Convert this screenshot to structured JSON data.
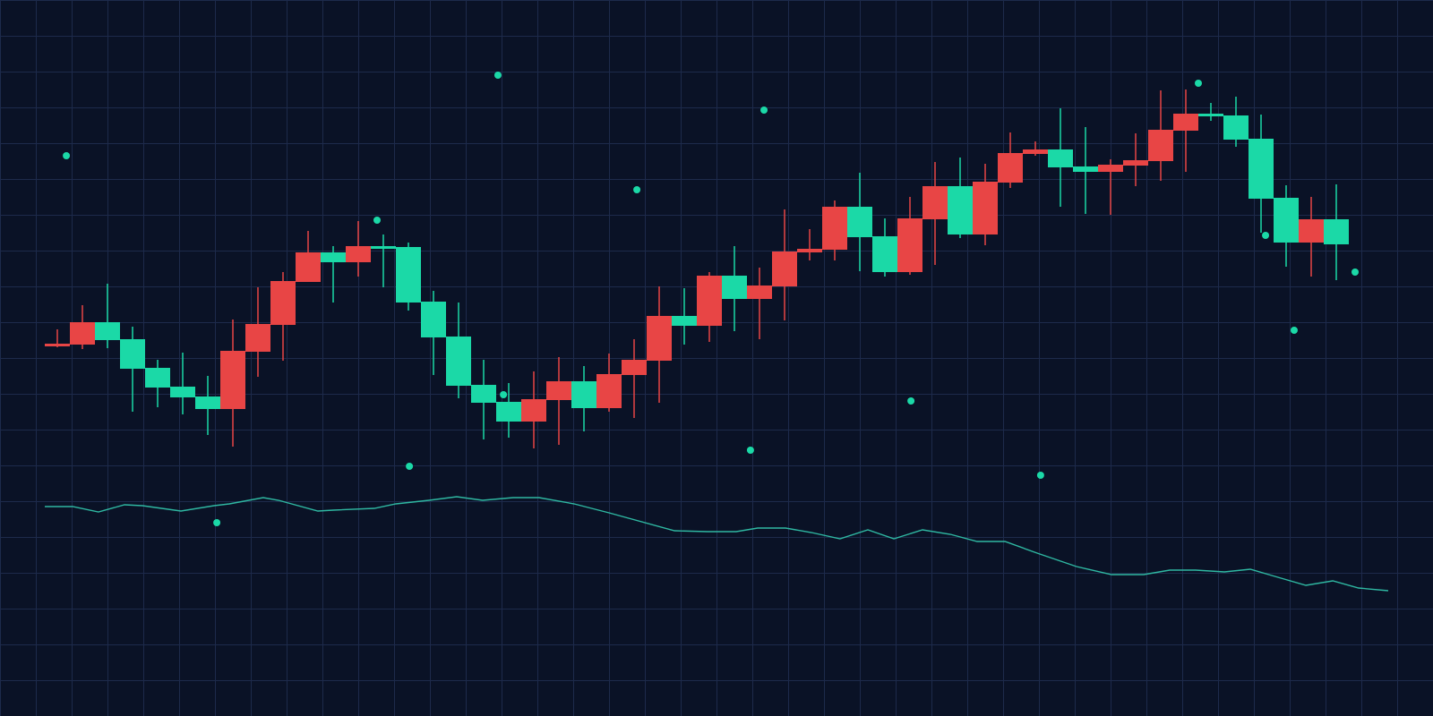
{
  "chart_data": {
    "type": "candlestick",
    "title": "",
    "xlabel": "",
    "ylabel": "",
    "grid": true,
    "legend": "none",
    "ylim": [
      0,
      800
    ],
    "colors": {
      "background": "#0a1226",
      "grid": "#1d2a4b",
      "candle_up": "#e84545",
      "candle_down": "#1bd9a7",
      "line": "#2fb8a2",
      "dots": "#1bd9a7"
    },
    "candles": [
      {
        "o": 413,
        "h": 432,
        "l": 412,
        "c": 416
      },
      {
        "o": 415,
        "h": 459,
        "l": 410,
        "c": 440
      },
      {
        "o": 440,
        "h": 483,
        "l": 411,
        "c": 420
      },
      {
        "o": 421,
        "h": 435,
        "l": 340,
        "c": 388
      },
      {
        "o": 389,
        "h": 398,
        "l": 345,
        "c": 367
      },
      {
        "o": 368,
        "h": 406,
        "l": 337,
        "c": 356
      },
      {
        "o": 357,
        "h": 380,
        "l": 314,
        "c": 343
      },
      {
        "o": 343,
        "h": 443,
        "l": 301,
        "c": 408
      },
      {
        "o": 407,
        "h": 479,
        "l": 379,
        "c": 438
      },
      {
        "o": 437,
        "h": 496,
        "l": 397,
        "c": 486
      },
      {
        "o": 485,
        "h": 542,
        "l": 485,
        "c": 518
      },
      {
        "o": 518,
        "h": 525,
        "l": 462,
        "c": 507
      },
      {
        "o": 507,
        "h": 553,
        "l": 491,
        "c": 525
      },
      {
        "o": 525,
        "h": 538,
        "l": 479,
        "c": 523
      },
      {
        "o": 524,
        "h": 529,
        "l": 453,
        "c": 462
      },
      {
        "o": 463,
        "h": 475,
        "l": 381,
        "c": 423
      },
      {
        "o": 424,
        "h": 462,
        "l": 355,
        "c": 369
      },
      {
        "o": 370,
        "h": 398,
        "l": 309,
        "c": 350
      },
      {
        "o": 351,
        "h": 372,
        "l": 311,
        "c": 329
      },
      {
        "o": 329,
        "h": 385,
        "l": 299,
        "c": 354
      },
      {
        "o": 353,
        "h": 401,
        "l": 303,
        "c": 374
      },
      {
        "o": 374,
        "h": 391,
        "l": 318,
        "c": 344
      },
      {
        "o": 344,
        "h": 405,
        "l": 340,
        "c": 382
      },
      {
        "o": 381,
        "h": 421,
        "l": 333,
        "c": 398
      },
      {
        "o": 397,
        "h": 480,
        "l": 350,
        "c": 447
      },
      {
        "o": 447,
        "h": 478,
        "l": 415,
        "c": 436
      },
      {
        "o": 436,
        "h": 496,
        "l": 418,
        "c": 492
      },
      {
        "o": 492,
        "h": 525,
        "l": 430,
        "c": 466
      },
      {
        "o": 466,
        "h": 501,
        "l": 421,
        "c": 481
      },
      {
        "o": 480,
        "h": 566,
        "l": 442,
        "c": 519
      },
      {
        "o": 518,
        "h": 544,
        "l": 509,
        "c": 522
      },
      {
        "o": 521,
        "h": 576,
        "l": 509,
        "c": 569
      },
      {
        "o": 569,
        "h": 607,
        "l": 497,
        "c": 535
      },
      {
        "o": 536,
        "h": 556,
        "l": 491,
        "c": 496
      },
      {
        "o": 496,
        "h": 580,
        "l": 493,
        "c": 556
      },
      {
        "o": 555,
        "h": 619,
        "l": 504,
        "c": 592
      },
      {
        "o": 592,
        "h": 624,
        "l": 534,
        "c": 538
      },
      {
        "o": 538,
        "h": 617,
        "l": 526,
        "c": 597
      },
      {
        "o": 596,
        "h": 652,
        "l": 590,
        "c": 629
      },
      {
        "o": 628,
        "h": 642,
        "l": 626,
        "c": 633
      },
      {
        "o": 633,
        "h": 679,
        "l": 569,
        "c": 613
      },
      {
        "o": 614,
        "h": 658,
        "l": 561,
        "c": 608
      },
      {
        "o": 608,
        "h": 622,
        "l": 560,
        "c": 616
      },
      {
        "o": 615,
        "h": 651,
        "l": 592,
        "c": 621
      },
      {
        "o": 620,
        "h": 699,
        "l": 598,
        "c": 655
      },
      {
        "o": 654,
        "h": 700,
        "l": 608,
        "c": 673
      },
      {
        "o": 673,
        "h": 685,
        "l": 665,
        "c": 670
      },
      {
        "o": 671,
        "h": 692,
        "l": 636,
        "c": 644
      },
      {
        "o": 645,
        "h": 672,
        "l": 540,
        "c": 578
      },
      {
        "o": 579,
        "h": 593,
        "l": 502,
        "c": 529
      },
      {
        "o": 529,
        "h": 580,
        "l": 491,
        "c": 555
      },
      {
        "o": 555,
        "h": 594,
        "l": 487,
        "c": 527
      }
    ],
    "line": [
      [
        -0.5,
        234
      ],
      [
        0.61,
        234
      ],
      [
        1.64,
        228
      ],
      [
        2.68,
        236
      ],
      [
        3.39,
        235
      ],
      [
        4.93,
        229
      ],
      [
        6.25,
        235
      ],
      [
        6.86,
        237
      ],
      [
        8.21,
        244
      ],
      [
        8.82,
        241
      ],
      [
        10.39,
        229
      ],
      [
        11,
        230
      ],
      [
        12.64,
        232
      ],
      [
        13.5,
        237
      ],
      [
        14.82,
        241
      ],
      [
        15.93,
        245
      ],
      [
        16.96,
        241
      ],
      [
        18.18,
        244
      ],
      [
        19.21,
        244
      ],
      [
        20.61,
        237
      ],
      [
        22,
        227
      ],
      [
        24.61,
        207
      ],
      [
        25.93,
        206
      ],
      [
        27.07,
        206
      ],
      [
        27.93,
        210
      ],
      [
        29.04,
        210
      ],
      [
        30.07,
        205
      ],
      [
        31.21,
        198
      ],
      [
        32.32,
        208
      ],
      [
        33.36,
        198
      ],
      [
        34.5,
        208
      ],
      [
        35.61,
        203
      ],
      [
        36.68,
        195
      ],
      [
        37.79,
        195
      ],
      [
        39.07,
        182
      ],
      [
        40.64,
        167
      ],
      [
        42.04,
        158
      ],
      [
        43.32,
        158
      ],
      [
        44.36,
        163
      ],
      [
        45.39,
        163
      ],
      [
        46.54,
        161
      ],
      [
        47.57,
        164
      ],
      [
        48.43,
        157
      ],
      [
        49.79,
        146
      ],
      [
        50.86,
        151
      ],
      [
        51.89,
        143
      ],
      [
        53.07,
        140
      ]
    ],
    "dots": [
      [
        0.36,
        626
      ],
      [
        17.57,
        716
      ],
      [
        28.18,
        677
      ],
      [
        23.11,
        588
      ],
      [
        12.75,
        554
      ],
      [
        17.79,
        359
      ],
      [
        14.04,
        279
      ],
      [
        6.36,
        216
      ],
      [
        27.64,
        297
      ],
      [
        34.04,
        352
      ],
      [
        39.21,
        269
      ],
      [
        45.5,
        707
      ],
      [
        48.18,
        537
      ],
      [
        51.75,
        496
      ],
      [
        49.32,
        431
      ]
    ]
  }
}
